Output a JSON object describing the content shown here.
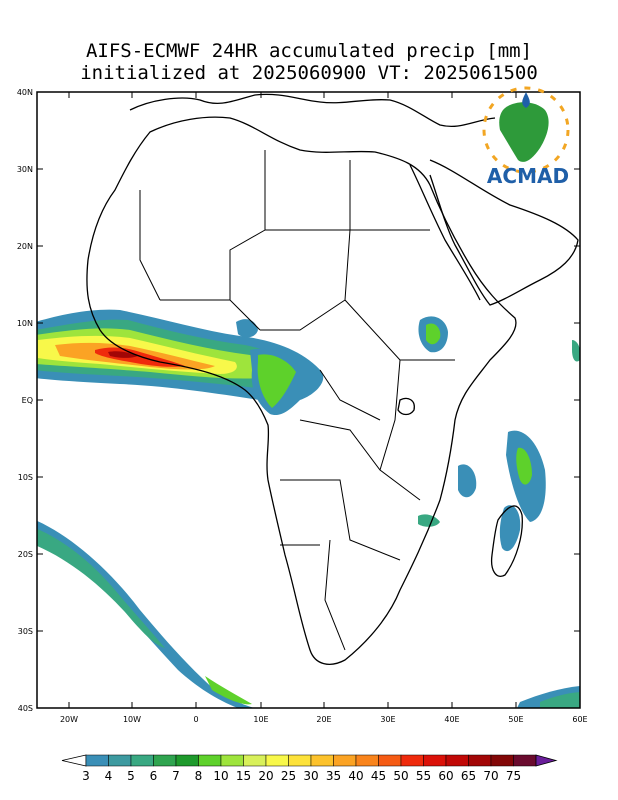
{
  "title_line1": "AIFS-ECMWF 24HR accumulated precip [mm]",
  "title_line2": "initialized at 2025060900 VT: 2025061500",
  "logo_text": "ACMAD",
  "lat_labels": [
    "40N",
    "30N",
    "20N",
    "10N",
    "EQ",
    "10S",
    "20S",
    "30S",
    "40S"
  ],
  "lon_labels": [
    "20W",
    "10W",
    "0",
    "10E",
    "20E",
    "30E",
    "40E",
    "50E",
    "60E"
  ],
  "colorbar": {
    "labels": [
      "3",
      "4",
      "5",
      "6",
      "7",
      "8",
      "10",
      "15",
      "20",
      "25",
      "30",
      "35",
      "40",
      "45",
      "50",
      "55",
      "60",
      "65",
      "70",
      "75"
    ],
    "colors": [
      "#3a8fb7",
      "#3d9aa0",
      "#39a882",
      "#2fa44f",
      "#1e9a2c",
      "#5ed12b",
      "#9ee43c",
      "#d8f05a",
      "#f8f84a",
      "#fde23a",
      "#fcc22c",
      "#fba324",
      "#f9841c",
      "#f55b14",
      "#ef2a0c",
      "#db1108",
      "#c10806",
      "#a20606",
      "#820707",
      "#6a0b2e"
    ],
    "under_color": "#ffffff",
    "over_color": "#6a1e9a"
  }
}
